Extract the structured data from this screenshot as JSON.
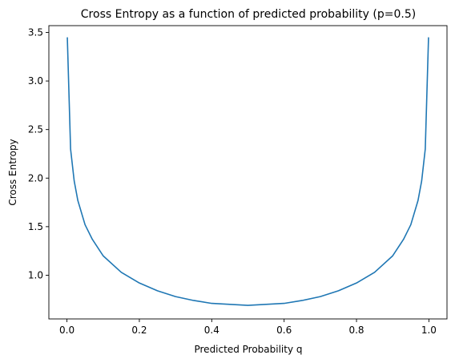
{
  "chart_data": {
    "type": "line",
    "title": "Cross Entropy as a function of predicted probability (p=0.5)",
    "xlabel": "Predicted Probability q",
    "ylabel": "Cross Entropy",
    "xlim": [
      -0.05,
      1.05
    ],
    "ylim": [
      0.55,
      3.57
    ],
    "xticks": [
      0.0,
      0.2,
      0.4,
      0.6,
      0.8,
      1.0
    ],
    "xtick_labels": [
      "0.0",
      "0.2",
      "0.4",
      "0.6",
      "0.8",
      "1.0"
    ],
    "yticks": [
      1.0,
      1.5,
      2.0,
      2.5,
      3.0,
      3.5
    ],
    "ytick_labels": [
      "1.0",
      "1.5",
      "2.0",
      "2.5",
      "3.0",
      "3.5"
    ],
    "grid": false,
    "series": [
      {
        "color": "#1f77b4",
        "x": [
          0.001,
          0.01,
          0.02,
          0.03,
          0.05,
          0.07,
          0.1,
          0.15,
          0.2,
          0.25,
          0.3,
          0.35,
          0.4,
          0.45,
          0.5,
          0.55,
          0.6,
          0.65,
          0.7,
          0.75,
          0.8,
          0.85,
          0.9,
          0.93,
          0.95,
          0.97,
          0.98,
          0.99,
          0.999
        ],
        "y": [
          3.45,
          2.3,
          1.97,
          1.77,
          1.52,
          1.37,
          1.2,
          1.03,
          0.92,
          0.84,
          0.78,
          0.74,
          0.71,
          0.7,
          0.69,
          0.7,
          0.71,
          0.74,
          0.78,
          0.84,
          0.92,
          1.03,
          1.2,
          1.37,
          1.52,
          1.77,
          1.97,
          2.3,
          3.45
        ]
      }
    ]
  }
}
